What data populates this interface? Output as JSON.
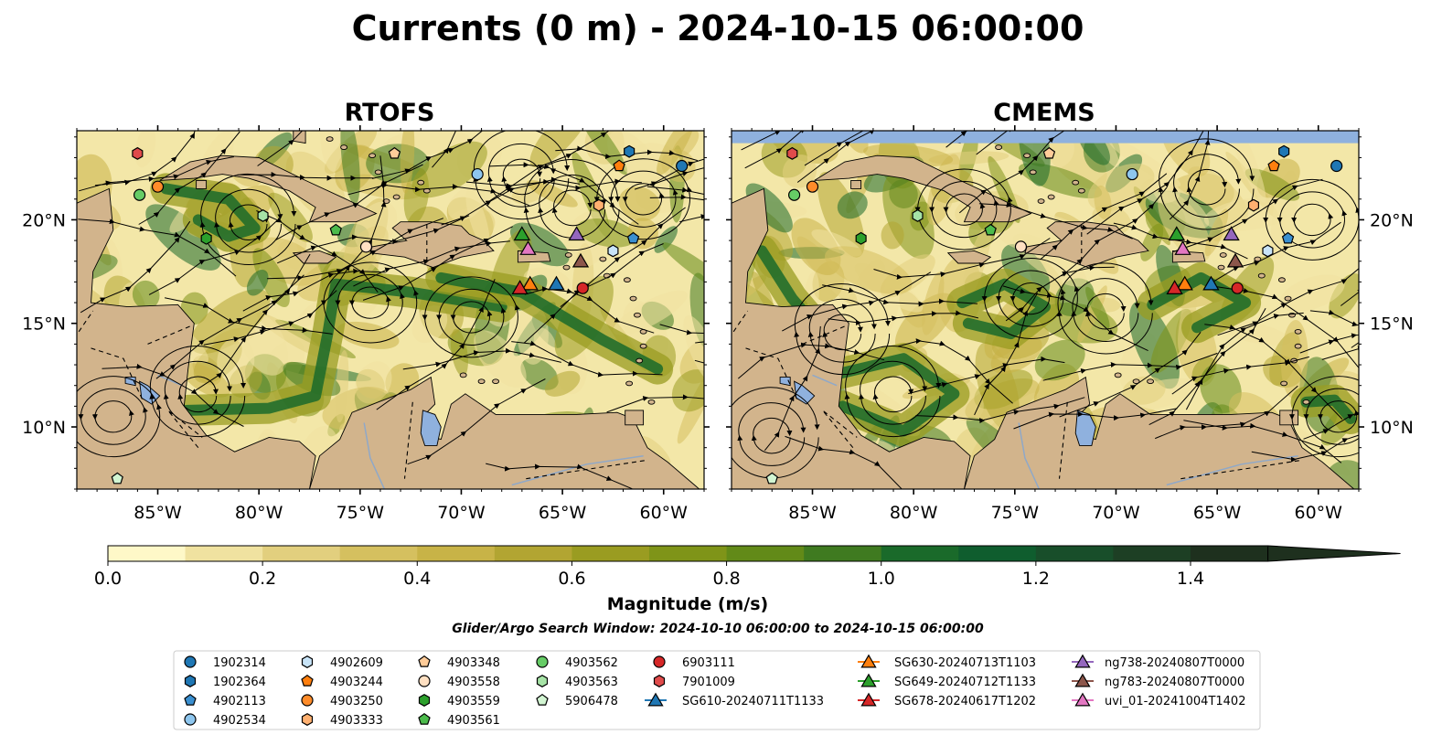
{
  "title": "Currents (0 m) - 2024-10-15 06:00:00",
  "panels": [
    {
      "name": "RTOFS"
    },
    {
      "name": "CMEMS"
    }
  ],
  "axes": {
    "lon_ticks": [
      "85°W",
      "80°W",
      "75°W",
      "70°W",
      "65°W",
      "60°W"
    ],
    "lat_ticks": [
      "20°N",
      "15°N",
      "10°N"
    ]
  },
  "colorbar": {
    "label": "Magnitude (m/s)",
    "ticks": [
      "0.0",
      "0.2",
      "0.4",
      "0.6",
      "0.8",
      "1.0",
      "1.2",
      "1.4"
    ],
    "levels": [
      0.0,
      0.1,
      0.2,
      0.3,
      0.4,
      0.5,
      0.6,
      0.7,
      0.8,
      0.9,
      1.0,
      1.1,
      1.2,
      1.3,
      1.4,
      1.5
    ],
    "colors": [
      "#fef8c8",
      "#f0e2a0",
      "#e2cf7e",
      "#d5c05f",
      "#c8b347",
      "#b2a532",
      "#9a9c21",
      "#7f9418",
      "#628a18",
      "#3f7a20",
      "#1a6a2a",
      "#0f5d2e",
      "#184e2a",
      "#1d3f24",
      "#1e301e"
    ],
    "extend": "max"
  },
  "search_window": "Glider/Argo Search Window: 2024-10-10 06:00:00 to 2024-10-15 06:00:00",
  "land_color": "#d2b48c",
  "lake_color": "#8fb1de",
  "legend": [
    {
      "label": "1902314",
      "marker": "circle",
      "color": "#1f77b4"
    },
    {
      "label": "1902364",
      "marker": "hexagon",
      "color": "#1f77b4"
    },
    {
      "label": "4902113",
      "marker": "pentagon",
      "color": "#3a8fd0"
    },
    {
      "label": "4902534",
      "marker": "circle",
      "color": "#8ec6ee"
    },
    {
      "label": "4902609",
      "marker": "hexagon",
      "color": "#c8e4f8"
    },
    {
      "label": "4903244",
      "marker": "pentagon",
      "color": "#ff7f0e"
    },
    {
      "label": "4903250",
      "marker": "circle",
      "color": "#ff8c2a"
    },
    {
      "label": "4903333",
      "marker": "hexagon",
      "color": "#ffb070"
    },
    {
      "label": "4903348",
      "marker": "pentagon",
      "color": "#ffcc99"
    },
    {
      "label": "4903558",
      "marker": "circle",
      "color": "#ffe0c2"
    },
    {
      "label": "4903559",
      "marker": "hexagon",
      "color": "#2ca02c"
    },
    {
      "label": "4903561",
      "marker": "pentagon",
      "color": "#4cbb4c"
    },
    {
      "label": "4903562",
      "marker": "circle",
      "color": "#66cc66"
    },
    {
      "label": "4903563",
      "marker": "hexagon",
      "color": "#a6e3a6"
    },
    {
      "label": "5906478",
      "marker": "pentagon",
      "color": "#d2f5d2"
    },
    {
      "label": "6903111",
      "marker": "circle",
      "color": "#d62728"
    },
    {
      "label": "7901009",
      "marker": "hexagon",
      "color": "#e04b4b"
    },
    {
      "label": "SG610-20240711T1133",
      "marker": "triangle",
      "color": "#1f77b4",
      "line": true
    },
    {
      "label": "SG630-20240713T1103",
      "marker": "triangle",
      "color": "#ff7f0e",
      "line": true
    },
    {
      "label": "SG649-20240712T1133",
      "marker": "triangle",
      "color": "#2ca02c",
      "line": true
    },
    {
      "label": "SG678-20240617T1202",
      "marker": "triangle",
      "color": "#d62728",
      "line": true
    },
    {
      "label": "ng738-20240807T0000",
      "marker": "triangle",
      "color": "#9467bd",
      "line": true
    },
    {
      "label": "ng783-20240807T0000",
      "marker": "triangle",
      "color": "#8c564b",
      "line": true
    },
    {
      "label": "uvi_01-20241004T1402",
      "marker": "triangle",
      "color": "#e377c2",
      "line": true
    }
  ],
  "chart_data": {
    "type": "map",
    "lon_range": [
      -89,
      -58
    ],
    "lat_range": [
      7,
      24.3
    ],
    "markers": [
      {
        "id": "1902314",
        "lon": -59.1,
        "lat": 22.6
      },
      {
        "id": "1902364",
        "lon": -61.7,
        "lat": 23.3
      },
      {
        "id": "4902113",
        "lon": -61.5,
        "lat": 19.1
      },
      {
        "id": "4902534",
        "lon": -69.2,
        "lat": 22.2
      },
      {
        "id": "4902609",
        "lon": -62.5,
        "lat": 18.5
      },
      {
        "id": "4903244",
        "lon": -62.2,
        "lat": 22.6
      },
      {
        "id": "4903250",
        "lon": -85.0,
        "lat": 21.6
      },
      {
        "id": "4903333",
        "lon": -63.2,
        "lat": 20.7
      },
      {
        "id": "4903348",
        "lon": -73.3,
        "lat": 23.2
      },
      {
        "id": "4903558",
        "lon": -74.7,
        "lat": 18.7
      },
      {
        "id": "4903559",
        "lon": -82.6,
        "lat": 19.1
      },
      {
        "id": "4903561",
        "lon": -76.2,
        "lat": 19.5
      },
      {
        "id": "4903562",
        "lon": -85.9,
        "lat": 21.2
      },
      {
        "id": "4903563",
        "lon": -79.8,
        "lat": 20.2
      },
      {
        "id": "5906478",
        "lon": -87.0,
        "lat": 7.5
      },
      {
        "id": "6903111",
        "lon": -64.0,
        "lat": 16.7
      },
      {
        "id": "7901009",
        "lon": -86.0,
        "lat": 23.2
      },
      {
        "id": "SG610-20240711T1133",
        "lon": -65.3,
        "lat": 16.9
      },
      {
        "id": "SG630-20240713T1103",
        "lon": -66.6,
        "lat": 16.9
      },
      {
        "id": "SG649-20240712T1133",
        "lon": -67.0,
        "lat": 19.3
      },
      {
        "id": "SG678-20240617T1202",
        "lon": -67.1,
        "lat": 16.7
      },
      {
        "id": "ng738-20240807T0000",
        "lon": -64.3,
        "lat": 19.3
      },
      {
        "id": "ng783-20240807T0000",
        "lon": -64.1,
        "lat": 18.0
      },
      {
        "id": "uvi_01-20241004T1402",
        "lon": -66.7,
        "lat": 18.6
      }
    ]
  }
}
